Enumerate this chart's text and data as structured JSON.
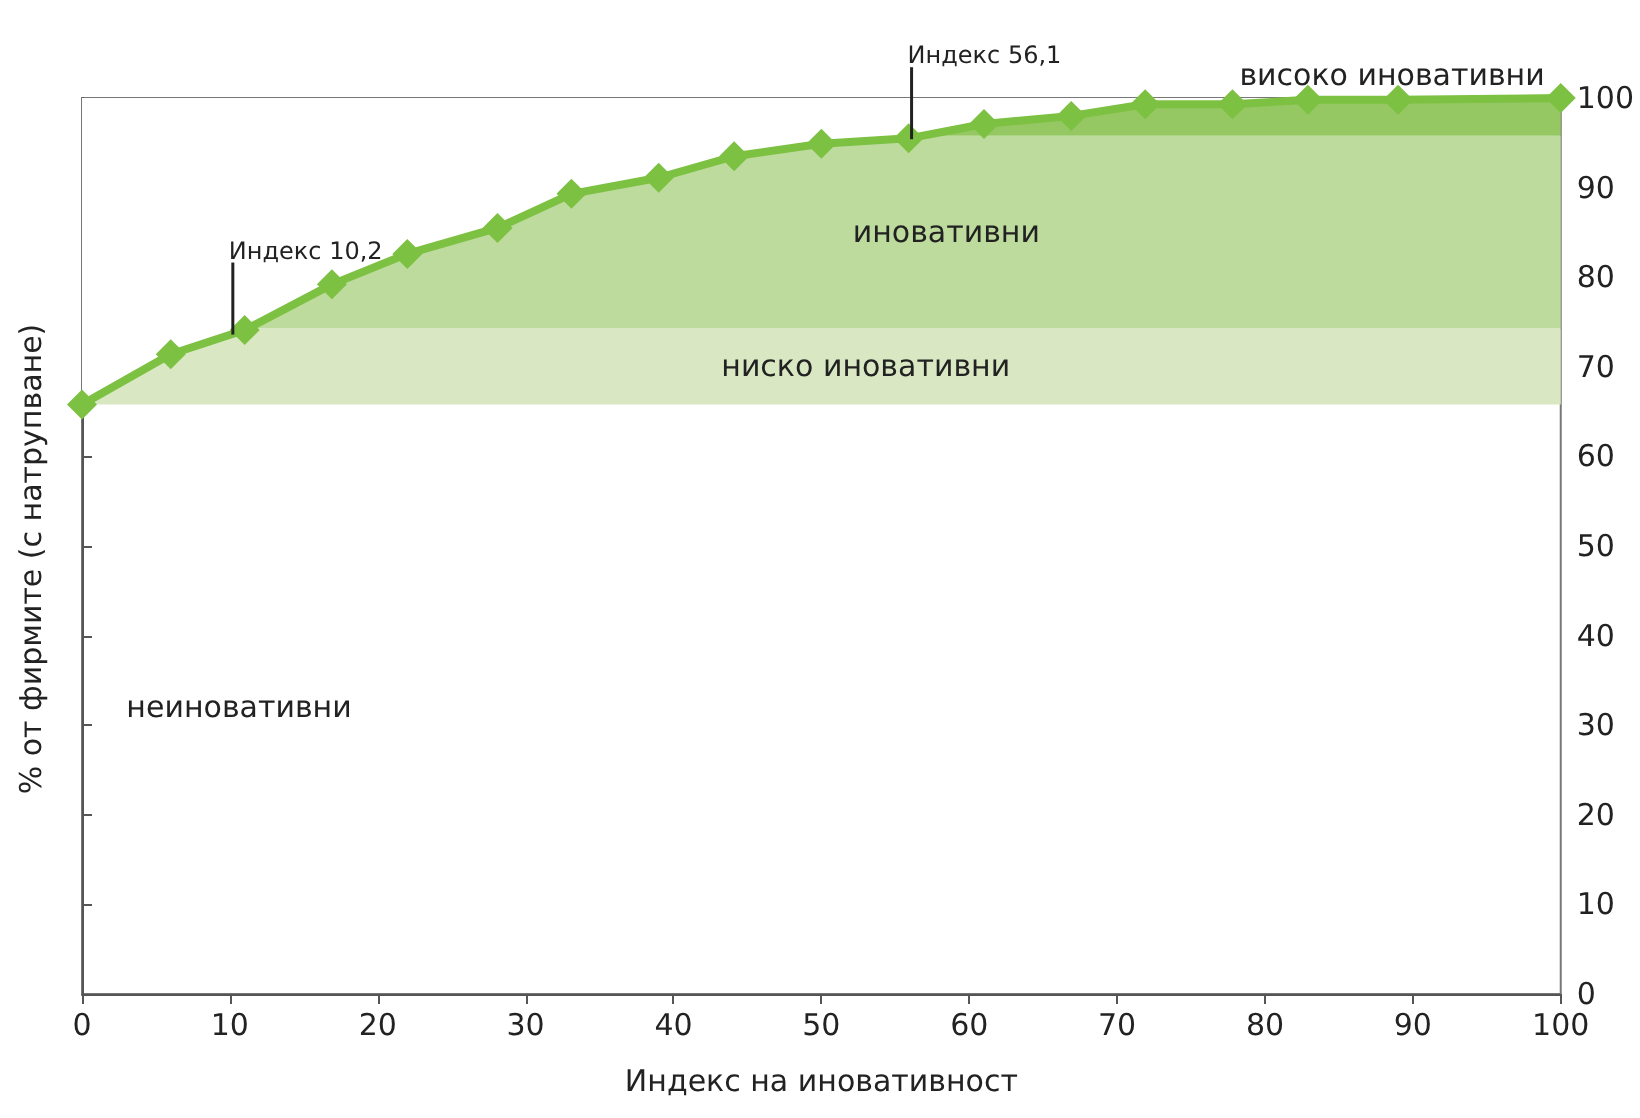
{
  "chart_data": {
    "type": "line",
    "xlabel": "Индекс на иновативност",
    "ylabel": "% от фирмите (с натрупване)",
    "x": [
      0,
      6,
      11,
      16.9,
      22,
      28.1,
      33.1,
      39,
      44.1,
      50,
      55.9,
      61,
      66.9,
      71.9,
      77.8,
      82.9,
      89,
      100
    ],
    "series": [
      {
        "color": "#7dc142",
        "values": [
          65.8,
          71.4,
          74.1,
          79.2,
          82.6,
          85.5,
          89.3,
          91.1,
          93.5,
          94.9,
          95.5,
          97.1,
          98,
          99.3,
          99.3,
          99.8,
          99.8,
          100
        ]
      }
    ],
    "xlim": [
      0,
      100
    ],
    "xticks": [
      0,
      10,
      20,
      30,
      40,
      50,
      60,
      70,
      80,
      90,
      100
    ],
    "ylim": [
      0,
      100
    ],
    "yticks": [
      0,
      10,
      20,
      30,
      40,
      50,
      60,
      70,
      80,
      90,
      100
    ],
    "bands": [
      {
        "axis": "y",
        "from": 65.8,
        "to": 74.3,
        "label": "ниско иновативни",
        "color": "#d9e8c3"
      },
      {
        "axis": "y",
        "from": 74.3,
        "to": 95.8,
        "label": "иновативни",
        "color": "#bddb9d"
      },
      {
        "axis": "y",
        "from": 95.8,
        "to": 100,
        "label": "високо иновативни",
        "color": "#95c862"
      }
    ],
    "annotations": [
      {
        "text": "Индекс 10,2",
        "x": 10.2,
        "y": 73.6
      },
      {
        "text": "Индекс 56,1",
        "x": 56.1,
        "y": 95.4
      },
      "неиновативни"
    ],
    "marker": "diamond",
    "line_style": "solid",
    "grid": false
  }
}
